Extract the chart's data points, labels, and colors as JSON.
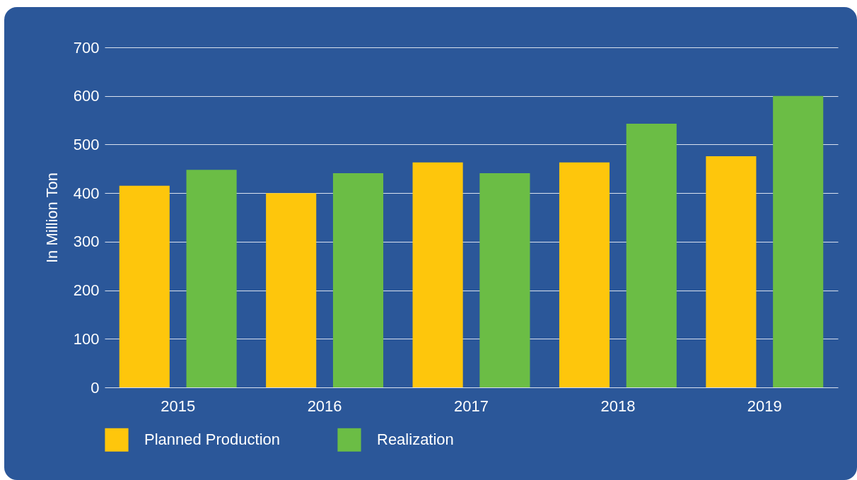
{
  "chart_data": {
    "type": "bar",
    "ylabel": "In Million Ton",
    "categories": [
      "2015",
      "2016",
      "2017",
      "2018",
      "2019"
    ],
    "series": [
      {
        "name": "Planned Production",
        "color": "#fec60c",
        "values": [
          415,
          400,
          463,
          463,
          476
        ]
      },
      {
        "name": "Realization",
        "color": "#6bbd45",
        "values": [
          448,
          441,
          441,
          543,
          600
        ]
      }
    ],
    "ylim": [
      0,
      700
    ],
    "yticks": [
      0,
      100,
      200,
      300,
      400,
      500,
      600,
      700
    ],
    "grid": "y",
    "legend": "bottom"
  }
}
